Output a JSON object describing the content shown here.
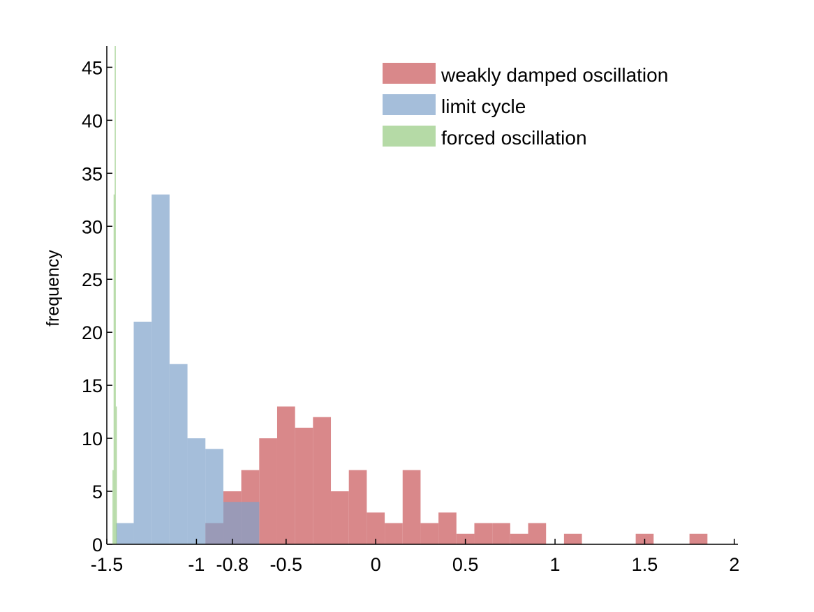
{
  "chart_data": {
    "type": "bar",
    "ylabel": "frequency",
    "xlabel": "",
    "xlim": [
      -1.5,
      2.02
    ],
    "ylim": [
      0,
      47
    ],
    "x_ticks": [
      {
        "value": -1.5,
        "label": "-1.5"
      },
      {
        "value": -1.0,
        "label": "-1"
      },
      {
        "value": -0.8,
        "label": "-0.8"
      },
      {
        "value": -0.5,
        "label": "-0.5"
      },
      {
        "value": 0,
        "label": "0"
      },
      {
        "value": 0.5,
        "label": "0.5"
      },
      {
        "value": 1,
        "label": "1"
      },
      {
        "value": 1.5,
        "label": "1.5"
      },
      {
        "value": 2,
        "label": "2"
      }
    ],
    "y_ticks": [
      {
        "value": 0,
        "label": "0"
      },
      {
        "value": 5,
        "label": "5"
      },
      {
        "value": 10,
        "label": "10"
      },
      {
        "value": 15,
        "label": "15"
      },
      {
        "value": 20,
        "label": "20"
      },
      {
        "value": 25,
        "label": "25"
      },
      {
        "value": 30,
        "label": "30"
      },
      {
        "value": 35,
        "label": "35"
      },
      {
        "value": 40,
        "label": "40"
      },
      {
        "value": 45,
        "label": "45"
      }
    ],
    "legend_position": "top-right",
    "series": [
      {
        "name": "weakly damped oscillation",
        "color": "#d9888a",
        "opacity": 1,
        "bins": [
          {
            "x0": -0.95,
            "x1": -0.85,
            "count": 2
          },
          {
            "x0": -0.85,
            "x1": -0.75,
            "count": 5
          },
          {
            "x0": -0.75,
            "x1": -0.65,
            "count": 7
          },
          {
            "x0": -0.65,
            "x1": -0.55,
            "count": 10
          },
          {
            "x0": -0.55,
            "x1": -0.45,
            "count": 13
          },
          {
            "x0": -0.45,
            "x1": -0.35,
            "count": 11
          },
          {
            "x0": -0.35,
            "x1": -0.25,
            "count": 12
          },
          {
            "x0": -0.25,
            "x1": -0.15,
            "count": 5
          },
          {
            "x0": -0.15,
            "x1": -0.05,
            "count": 7
          },
          {
            "x0": -0.05,
            "x1": 0.05,
            "count": 3
          },
          {
            "x0": 0.05,
            "x1": 0.15,
            "count": 2
          },
          {
            "x0": 0.15,
            "x1": 0.25,
            "count": 7
          },
          {
            "x0": 0.25,
            "x1": 0.35,
            "count": 2
          },
          {
            "x0": 0.35,
            "x1": 0.45,
            "count": 3
          },
          {
            "x0": 0.45,
            "x1": 0.55,
            "count": 1
          },
          {
            "x0": 0.55,
            "x1": 0.65,
            "count": 2
          },
          {
            "x0": 0.65,
            "x1": 0.75,
            "count": 2
          },
          {
            "x0": 0.75,
            "x1": 0.85,
            "count": 1
          },
          {
            "x0": 0.85,
            "x1": 0.95,
            "count": 2
          },
          {
            "x0": 1.05,
            "x1": 1.15,
            "count": 1
          },
          {
            "x0": 1.45,
            "x1": 1.55,
            "count": 1
          },
          {
            "x0": 1.75,
            "x1": 1.85,
            "count": 1
          }
        ]
      },
      {
        "name": "limit cycle",
        "color": "#7fa3cb",
        "opacity": 0.7,
        "bins": [
          {
            "x0": -1.45,
            "x1": -1.35,
            "count": 2
          },
          {
            "x0": -1.35,
            "x1": -1.25,
            "count": 21
          },
          {
            "x0": -1.25,
            "x1": -1.15,
            "count": 33
          },
          {
            "x0": -1.15,
            "x1": -1.05,
            "count": 17
          },
          {
            "x0": -1.05,
            "x1": -0.95,
            "count": 10
          },
          {
            "x0": -0.95,
            "x1": -0.85,
            "count": 9
          },
          {
            "x0": -0.85,
            "x1": -0.75,
            "count": 4
          },
          {
            "x0": -0.75,
            "x1": -0.65,
            "count": 4
          }
        ]
      },
      {
        "name": "forced oscillation",
        "color": "#a3d190",
        "opacity": 0.8,
        "bins": [
          {
            "x0": -1.468,
            "x1": -1.462,
            "count": 7
          },
          {
            "x0": -1.462,
            "x1": -1.456,
            "count": 33
          },
          {
            "x0": -1.456,
            "x1": -1.45,
            "count": 47
          },
          {
            "x0": -1.45,
            "x1": -1.444,
            "count": 13
          }
        ]
      }
    ]
  }
}
